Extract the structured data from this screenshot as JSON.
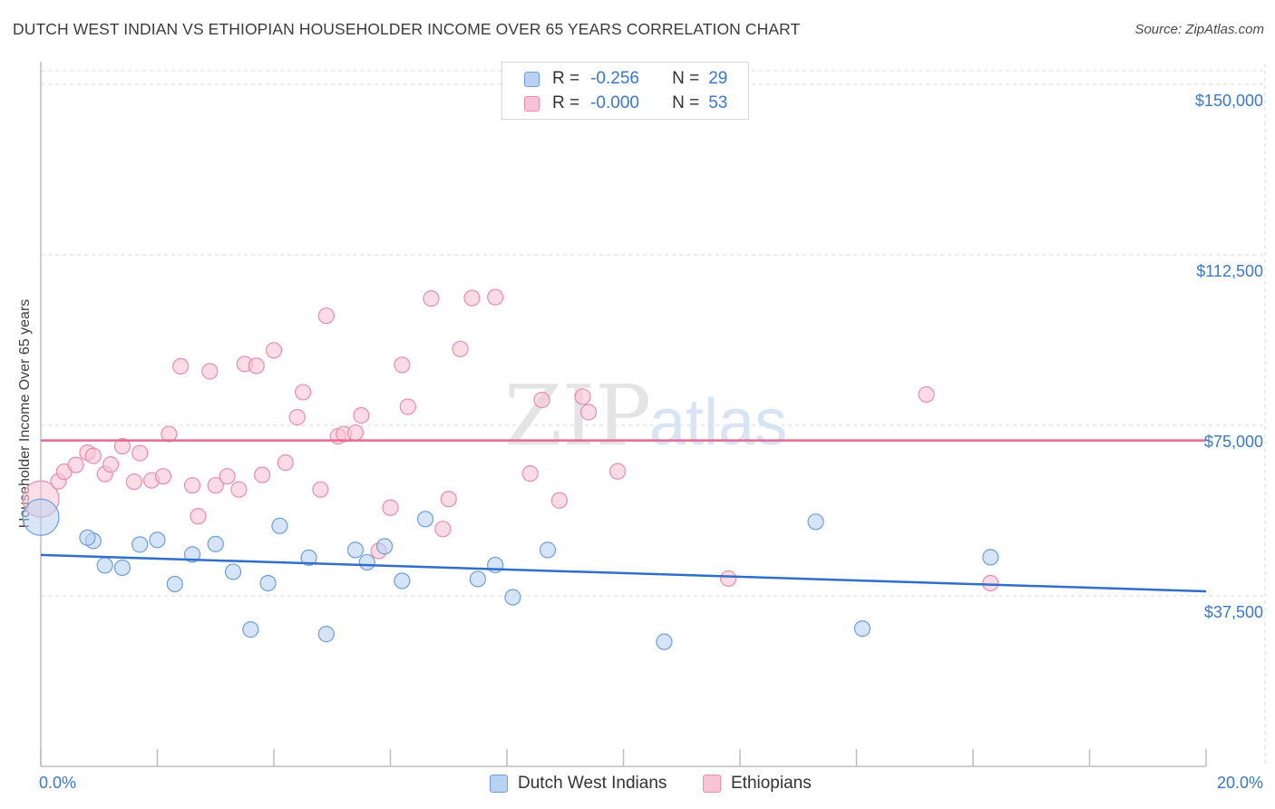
{
  "title": "DUTCH WEST INDIAN VS ETHIOPIAN HOUSEHOLDER INCOME OVER 65 YEARS CORRELATION CHART",
  "source": "Source: ZipAtlas.com",
  "watermark": {
    "zip": "ZIP",
    "atlas": "atlas"
  },
  "legend_top": [
    {
      "r_label": "R =",
      "r_value": "-0.256",
      "n_label": "N =",
      "n_value": "29"
    },
    {
      "r_label": "R =",
      "r_value": "-0.000",
      "n_label": "N =",
      "n_value": "53"
    }
  ],
  "legend_bottom": [
    "Dutch West Indians",
    "Ethiopians"
  ],
  "colors": {
    "blue_fill": "#b9d2f2",
    "blue_stroke": "#6d9fdc",
    "blue_line": "#2f6fca",
    "pink_fill": "#f8c3d3",
    "pink_stroke": "#e98eaa",
    "pink_line": "#e46a93",
    "tick_text": "#3a78c9",
    "grid": "#d9d9d9"
  },
  "chart_data": {
    "type": "scatter",
    "title": "DUTCH WEST INDIAN VS ETHIOPIAN HOUSEHOLDER INCOME OVER 65 YEARS CORRELATION CHART",
    "xlabel": "",
    "ylabel": "Householder Income Over 65 years",
    "xlim": [
      0,
      20
    ],
    "ylim": [
      0,
      153000
    ],
    "x_tick_labels": [
      "0.0%",
      "20.0%"
    ],
    "y_ticks": [
      37500,
      75000,
      112500,
      150000
    ],
    "y_tick_labels": [
      "$37,500",
      "$75,000",
      "$112,500",
      "$150,000"
    ],
    "grid": true,
    "series": [
      {
        "name": "Dutch West Indians",
        "color": "blue",
        "trend": [
          [
            0,
            46500
          ],
          [
            20,
            38500
          ]
        ],
        "points": [
          [
            0.0,
            54800,
            "large"
          ],
          [
            0.9,
            49600
          ],
          [
            0.8,
            50300
          ],
          [
            1.1,
            44200
          ],
          [
            1.4,
            43700
          ],
          [
            1.7,
            48800
          ],
          [
            2.0,
            49800
          ],
          [
            2.3,
            40100
          ],
          [
            2.6,
            46600
          ],
          [
            3.0,
            48900
          ],
          [
            3.3,
            42800
          ],
          [
            3.6,
            30100
          ],
          [
            3.9,
            40300
          ],
          [
            4.1,
            52900
          ],
          [
            4.6,
            45900
          ],
          [
            4.9,
            29100
          ],
          [
            5.4,
            47600
          ],
          [
            5.6,
            44900
          ],
          [
            5.9,
            48400
          ],
          [
            6.2,
            40800
          ],
          [
            6.6,
            54400
          ],
          [
            7.5,
            41200
          ],
          [
            7.8,
            44300
          ],
          [
            8.1,
            37200
          ],
          [
            8.7,
            47600
          ],
          [
            10.7,
            27400
          ],
          [
            13.3,
            53800
          ],
          [
            14.1,
            30300
          ],
          [
            16.3,
            46000
          ]
        ]
      },
      {
        "name": "Ethiopians",
        "color": "pink",
        "trend": [
          [
            0,
            71700
          ],
          [
            20,
            71700
          ]
        ],
        "points": [
          [
            0.0,
            58800,
            "large"
          ],
          [
            0.3,
            62700
          ],
          [
            0.4,
            64800
          ],
          [
            0.6,
            66300
          ],
          [
            0.8,
            69000
          ],
          [
            0.9,
            68300
          ],
          [
            1.1,
            64300
          ],
          [
            1.2,
            66400
          ],
          [
            1.4,
            70400
          ],
          [
            1.6,
            62600
          ],
          [
            1.7,
            68900
          ],
          [
            1.9,
            62900
          ],
          [
            2.1,
            63800
          ],
          [
            2.2,
            73100
          ],
          [
            2.4,
            88000
          ],
          [
            2.6,
            61800
          ],
          [
            2.7,
            55000
          ],
          [
            2.9,
            86900
          ],
          [
            3.0,
            61800
          ],
          [
            3.2,
            63800
          ],
          [
            3.4,
            60900
          ],
          [
            3.5,
            88500
          ],
          [
            3.7,
            88100
          ],
          [
            3.8,
            64100
          ],
          [
            4.0,
            91500
          ],
          [
            4.2,
            66800
          ],
          [
            4.5,
            82300
          ],
          [
            4.4,
            76800
          ],
          [
            4.8,
            60900
          ],
          [
            4.9,
            99100
          ],
          [
            5.1,
            72600
          ],
          [
            5.2,
            73100
          ],
          [
            5.4,
            73400
          ],
          [
            5.5,
            77200
          ],
          [
            5.8,
            47400
          ],
          [
            6.0,
            56900
          ],
          [
            6.2,
            88300
          ],
          [
            6.3,
            79100
          ],
          [
            6.7,
            102900
          ],
          [
            6.9,
            52200
          ],
          [
            7.0,
            58800
          ],
          [
            7.2,
            91800
          ],
          [
            7.4,
            103000
          ],
          [
            7.8,
            103200
          ],
          [
            8.4,
            64400
          ],
          [
            8.6,
            80600
          ],
          [
            8.9,
            58500
          ],
          [
            9.3,
            81300
          ],
          [
            9.4,
            77900
          ],
          [
            9.9,
            64900
          ],
          [
            11.8,
            41300
          ],
          [
            15.2,
            81800
          ],
          [
            16.3,
            40300
          ]
        ]
      }
    ]
  }
}
